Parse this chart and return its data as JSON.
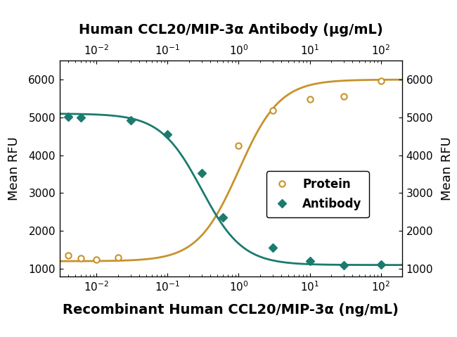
{
  "title_top": "Human CCL20/MIP-3α Antibody (μg/mL)",
  "title_bottom": "Recombinant Human CCL20/MIP-3α (ng/mL)",
  "ylabel": "Mean RFU",
  "ylim": [
    800,
    6500
  ],
  "yticks": [
    1000,
    2000,
    3000,
    4000,
    5000,
    6000
  ],
  "xlim": [
    0.003,
    200
  ],
  "protein_color": "#C8922A",
  "antibody_color": "#1A7B6E",
  "protein_points_x": [
    0.004,
    0.006,
    0.01,
    0.02,
    1.0,
    3.0,
    10,
    30,
    100
  ],
  "protein_points_y": [
    1350,
    1280,
    1250,
    1300,
    4250,
    5180,
    5480,
    5560,
    5970
  ],
  "antibody_points_x": [
    0.004,
    0.006,
    0.03,
    0.1,
    0.3,
    0.6,
    3.0,
    10,
    30,
    100
  ],
  "antibody_points_y": [
    5020,
    5000,
    4920,
    4550,
    3520,
    2350,
    1560,
    1200,
    1090,
    1120
  ],
  "background_color": "#ffffff"
}
